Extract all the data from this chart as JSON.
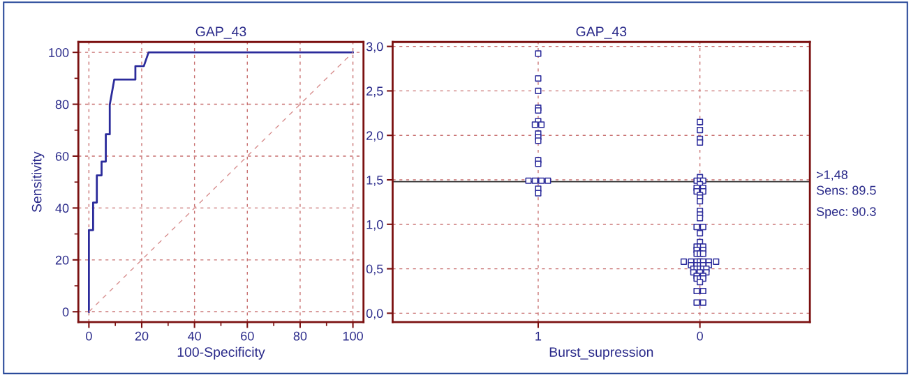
{
  "chart_data": [
    {
      "type": "line",
      "title": "GAP_43",
      "xlabel": "100-Specificity",
      "ylabel": "Sensitivity",
      "xlim": [
        -4,
        104
      ],
      "ylim": [
        -4,
        104
      ],
      "xticks": [
        0,
        20,
        40,
        60,
        80,
        100
      ],
      "yticks": [
        0,
        20,
        40,
        60,
        80,
        100
      ],
      "grid": true,
      "series": [
        {
          "color": "#2b2b9b",
          "line_style": "solid",
          "x": [
            0,
            0,
            1.6,
            1.6,
            3.0,
            3.0,
            4.8,
            4.8,
            6.4,
            6.4,
            7.9,
            7.9,
            9.6,
            17.6,
            17.6,
            20.8,
            22.6,
            100
          ],
          "values": [
            0,
            31.5,
            31.5,
            42.1,
            42.1,
            52.6,
            52.6,
            57.9,
            57.9,
            68.4,
            68.4,
            79.8,
            89.5,
            89.5,
            94.7,
            94.7,
            100,
            100
          ]
        },
        {
          "color": "#d89090",
          "line_style": "dashed",
          "x": [
            0,
            100
          ],
          "values": [
            0,
            100
          ]
        }
      ]
    },
    {
      "type": "scatter",
      "title": "GAP_43",
      "xlabel": "Burst_supression",
      "xlim": [
        1.9,
        -0.68
      ],
      "ylim": [
        -0.1,
        3.05
      ],
      "xticks": [
        1,
        0
      ],
      "yticks": [
        {
          "value": 0,
          "label": "0,0"
        },
        {
          "value": 0.5,
          "label": "0,5"
        },
        {
          "value": 1,
          "label": "1,0"
        },
        {
          "value": 1.5,
          "label": "1,5"
        },
        {
          "value": 2,
          "label": "2,0"
        },
        {
          "value": 2.5,
          "label": "2,5"
        },
        {
          "value": 3,
          "label": "3,0"
        }
      ],
      "grid": true,
      "marker": "square",
      "ref_lines": [
        {
          "axis": "y",
          "value": 1.48,
          "label": ">1,48",
          "color": "#333333",
          "line_style": "solid"
        }
      ],
      "annotations": [
        "Sens: 89.5",
        "Spec: 90.3"
      ],
      "series": [
        {
          "color": "#2b2b9b",
          "x": [
            1,
            1,
            1,
            1,
            1,
            1,
            1.02,
            0.98,
            1,
            1,
            1,
            1,
            1,
            1.06,
            1.02,
            0.98,
            0.94,
            1,
            1,
            0,
            0,
            0,
            0,
            0,
            0.02,
            0,
            -0.02,
            0,
            0.02,
            -0.02,
            0.02,
            -0.02,
            0,
            0,
            0,
            0,
            0,
            0,
            0.02,
            -0.02,
            0,
            0,
            0.02,
            0,
            -0.02,
            0.02,
            -0.02,
            0.02,
            0,
            -0.02,
            0.1,
            0.055,
            0.02,
            0,
            -0.02,
            -0.055,
            -0.1,
            0.055,
            0.02,
            0,
            -0.02,
            -0.055,
            0.04,
            0.02,
            0,
            -0.02,
            -0.04,
            0.04,
            0,
            -0.04,
            0.02,
            -0.02,
            0.02,
            0,
            -0.02,
            0,
            0.02,
            -0.02,
            0.02,
            -0.02
          ],
          "values": [
            2.92,
            2.64,
            2.5,
            2.31,
            2.28,
            2.16,
            2.12,
            2.12,
            2.02,
            1.98,
            1.94,
            1.72,
            1.68,
            1.49,
            1.49,
            1.49,
            1.49,
            1.4,
            1.35,
            2.15,
            2.06,
            1.96,
            1.92,
            1.53,
            1.49,
            1.49,
            1.49,
            1.45,
            1.41,
            1.41,
            1.37,
            1.37,
            1.33,
            1.3,
            1.26,
            1.15,
            1.11,
            1.07,
            0.97,
            0.97,
            0.9,
            0.8,
            0.75,
            0.75,
            0.75,
            0.71,
            0.71,
            0.67,
            0.67,
            0.67,
            0.58,
            0.58,
            0.58,
            0.58,
            0.58,
            0.58,
            0.58,
            0.54,
            0.54,
            0.54,
            0.54,
            0.54,
            0.5,
            0.5,
            0.5,
            0.5,
            0.5,
            0.46,
            0.46,
            0.46,
            0.42,
            0.42,
            0.39,
            0.39,
            0.39,
            0.35,
            0.25,
            0.25,
            0.12,
            0.12
          ]
        }
      ]
    }
  ]
}
